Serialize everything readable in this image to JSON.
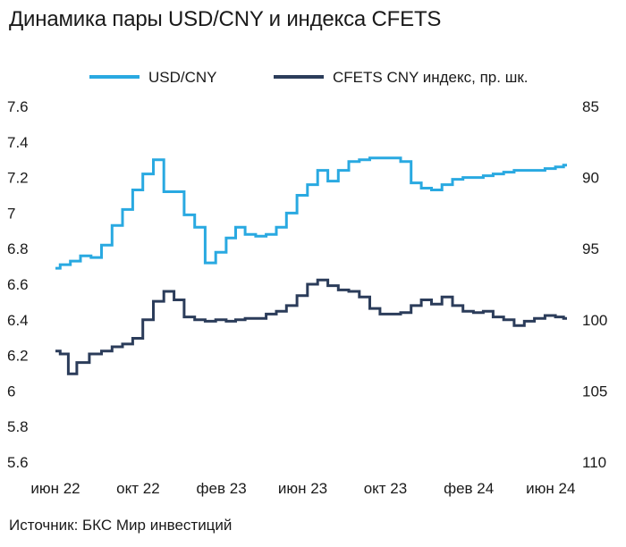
{
  "title": "Динамика пары USD/CNY и индекса CFETS",
  "source": "Источник: БКС Мир инвестиций",
  "chart_data": {
    "type": "line",
    "legend_position": "top",
    "grid": false,
    "y_left": {
      "ticks": [
        5.6,
        5.8,
        6,
        6.2,
        6.4,
        6.6,
        6.8,
        7,
        7.2,
        7.4,
        7.6
      ],
      "tick_labels": [
        "5.6",
        "5.8",
        "6",
        "6.2",
        "6.4",
        "6.6",
        "6.8",
        "7",
        "7.2",
        "7.4",
        "7.6"
      ],
      "range": [
        5.6,
        7.6
      ]
    },
    "y_right": {
      "inverted": true,
      "ticks": [
        85,
        90,
        95,
        100,
        105,
        110
      ],
      "tick_labels": [
        "85",
        "90",
        "95",
        "100",
        "105",
        "110"
      ],
      "range": [
        85,
        110
      ]
    },
    "x_axis": {
      "ticks": [
        "2022-06-01",
        "2022-10-01",
        "2023-02-01",
        "2023-06-01",
        "2023-10-01",
        "2024-02-01",
        "2024-06-01"
      ],
      "tick_labels": [
        "июн 22",
        "окт 22",
        "фев 23",
        "июн 23",
        "окт 23",
        "фев 24",
        "июн 24"
      ]
    },
    "series": [
      {
        "name": "USD/CNY",
        "axis": "left",
        "color": "#29a9e1",
        "points": [
          [
            "2022-06-01",
            6.69
          ],
          [
            "2022-06-15",
            6.71
          ],
          [
            "2022-07-01",
            6.73
          ],
          [
            "2022-07-15",
            6.76
          ],
          [
            "2022-08-01",
            6.75
          ],
          [
            "2022-08-15",
            6.82
          ],
          [
            "2022-09-01",
            6.93
          ],
          [
            "2022-09-15",
            7.02
          ],
          [
            "2022-10-01",
            7.13
          ],
          [
            "2022-10-15",
            7.22
          ],
          [
            "2022-11-01",
            7.3
          ],
          [
            "2022-11-15",
            7.12
          ],
          [
            "2022-12-01",
            7.12
          ],
          [
            "2022-12-15",
            6.99
          ],
          [
            "2023-01-01",
            6.92
          ],
          [
            "2023-01-15",
            6.72
          ],
          [
            "2023-02-01",
            6.78
          ],
          [
            "2023-02-15",
            6.86
          ],
          [
            "2023-03-01",
            6.92
          ],
          [
            "2023-03-15",
            6.88
          ],
          [
            "2023-04-01",
            6.87
          ],
          [
            "2023-04-15",
            6.88
          ],
          [
            "2023-05-01",
            6.92
          ],
          [
            "2023-05-15",
            7.0
          ],
          [
            "2023-06-01",
            7.1
          ],
          [
            "2023-06-15",
            7.16
          ],
          [
            "2023-07-01",
            7.24
          ],
          [
            "2023-07-15",
            7.18
          ],
          [
            "2023-08-01",
            7.24
          ],
          [
            "2023-08-15",
            7.29
          ],
          [
            "2023-09-01",
            7.3
          ],
          [
            "2023-09-15",
            7.31
          ],
          [
            "2023-10-01",
            7.31
          ],
          [
            "2023-10-15",
            7.31
          ],
          [
            "2023-11-01",
            7.29
          ],
          [
            "2023-11-15",
            7.17
          ],
          [
            "2023-12-01",
            7.14
          ],
          [
            "2023-12-15",
            7.13
          ],
          [
            "2024-01-01",
            7.16
          ],
          [
            "2024-01-15",
            7.19
          ],
          [
            "2024-02-01",
            7.2
          ],
          [
            "2024-02-15",
            7.2
          ],
          [
            "2024-03-01",
            7.21
          ],
          [
            "2024-03-15",
            7.22
          ],
          [
            "2024-04-01",
            7.23
          ],
          [
            "2024-04-15",
            7.24
          ],
          [
            "2024-05-01",
            7.24
          ],
          [
            "2024-05-15",
            7.24
          ],
          [
            "2024-06-01",
            7.25
          ],
          [
            "2024-06-15",
            7.26
          ],
          [
            "2024-06-25",
            7.27
          ]
        ]
      },
      {
        "name": "CFETS CNY индекс, пр. шк.",
        "axis": "right",
        "color": "#2b3c5a",
        "points": [
          [
            "2022-06-01",
            102.2
          ],
          [
            "2022-06-15",
            102.4
          ],
          [
            "2022-06-25",
            103.8
          ],
          [
            "2022-07-10",
            103.0
          ],
          [
            "2022-08-01",
            102.4
          ],
          [
            "2022-08-15",
            102.2
          ],
          [
            "2022-09-01",
            101.9
          ],
          [
            "2022-09-15",
            101.7
          ],
          [
            "2022-10-01",
            101.3
          ],
          [
            "2022-10-15",
            100.0
          ],
          [
            "2022-11-01",
            98.7
          ],
          [
            "2022-11-15",
            98.0
          ],
          [
            "2022-12-01",
            98.6
          ],
          [
            "2022-12-15",
            99.8
          ],
          [
            "2023-01-01",
            100.0
          ],
          [
            "2023-01-15",
            100.1
          ],
          [
            "2023-02-01",
            100.0
          ],
          [
            "2023-02-15",
            100.1
          ],
          [
            "2023-03-01",
            100.0
          ],
          [
            "2023-03-15",
            99.9
          ],
          [
            "2023-04-01",
            99.9
          ],
          [
            "2023-04-15",
            99.6
          ],
          [
            "2023-05-01",
            99.4
          ],
          [
            "2023-05-15",
            99.0
          ],
          [
            "2023-06-01",
            98.3
          ],
          [
            "2023-06-15",
            97.5
          ],
          [
            "2023-07-01",
            97.2
          ],
          [
            "2023-07-15",
            97.6
          ],
          [
            "2023-08-01",
            97.9
          ],
          [
            "2023-08-15",
            98.0
          ],
          [
            "2023-09-01",
            98.4
          ],
          [
            "2023-09-15",
            99.2
          ],
          [
            "2023-10-01",
            99.6
          ],
          [
            "2023-10-15",
            99.6
          ],
          [
            "2023-11-01",
            99.5
          ],
          [
            "2023-11-15",
            99.0
          ],
          [
            "2023-12-01",
            98.6
          ],
          [
            "2023-12-15",
            98.9
          ],
          [
            "2024-01-01",
            98.4
          ],
          [
            "2024-01-15",
            99.0
          ],
          [
            "2024-02-01",
            99.4
          ],
          [
            "2024-02-15",
            99.5
          ],
          [
            "2024-03-01",
            99.4
          ],
          [
            "2024-03-15",
            99.8
          ],
          [
            "2024-04-01",
            100.0
          ],
          [
            "2024-04-15",
            100.4
          ],
          [
            "2024-05-01",
            100.1
          ],
          [
            "2024-05-15",
            99.9
          ],
          [
            "2024-06-01",
            99.7
          ],
          [
            "2024-06-15",
            99.8
          ],
          [
            "2024-06-25",
            99.9
          ]
        ]
      }
    ]
  }
}
